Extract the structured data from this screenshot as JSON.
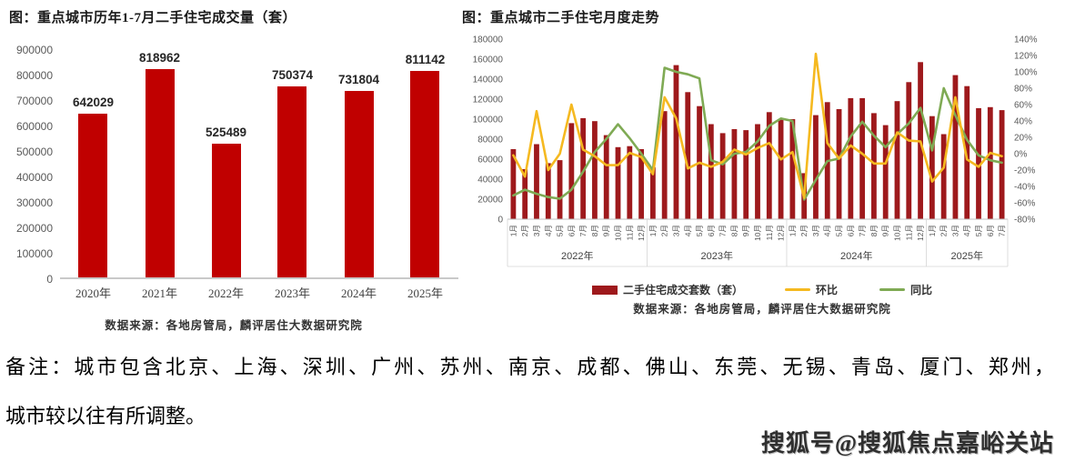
{
  "chart_data": [
    {
      "type": "bar",
      "title": "图：重点城市历年1-7月二手住宅成交量（套）",
      "categories": [
        "2020年",
        "2021年",
        "2022年",
        "2023年",
        "2024年",
        "2025年"
      ],
      "values": [
        642029,
        818962,
        525489,
        750374,
        731804,
        811142
      ],
      "value_labels": [
        "642029",
        "818962",
        "525489",
        "750374",
        "731804",
        "811142"
      ],
      "ylim": [
        0,
        900000
      ],
      "yticks": [
        0,
        100000,
        200000,
        300000,
        400000,
        500000,
        600000,
        700000,
        800000,
        900000
      ],
      "bar_color": "#c00000",
      "grid": false,
      "source": "数据来源：各地房管局，麟评居住大数据研究院"
    },
    {
      "type": "combo",
      "title": "图：重点城市二手住宅月度走势",
      "categories": [
        "1月",
        "2月",
        "3月",
        "4月",
        "5月",
        "6月",
        "7月",
        "8月",
        "9月",
        "10月",
        "11月",
        "12月",
        "1月",
        "2月",
        "3月",
        "4月",
        "5月",
        "6月",
        "7月",
        "8月",
        "9月",
        "10月",
        "11月",
        "12月",
        "1月",
        "2月",
        "3月",
        "4月",
        "5月",
        "6月",
        "7月",
        "8月",
        "9月",
        "10月",
        "11月",
        "12月",
        "1月",
        "2月",
        "3月",
        "4月",
        "5月",
        "6月",
        "7月"
      ],
      "year_groups": [
        {
          "label": "2022年",
          "months": 12
        },
        {
          "label": "2023年",
          "months": 12
        },
        {
          "label": "2024年",
          "months": 12
        },
        {
          "label": "2025年",
          "months": 7
        }
      ],
      "left_ylim": [
        0,
        180000
      ],
      "left_yticks": [
        0,
        20000,
        40000,
        60000,
        80000,
        100000,
        120000,
        140000,
        160000,
        180000
      ],
      "right_ylim": [
        -80,
        140
      ],
      "right_yticks": [
        140,
        120,
        100,
        80,
        60,
        40,
        20,
        0,
        -20,
        -40,
        -60,
        -80
      ],
      "grid": false,
      "legend_position": "bottom",
      "series": [
        {
          "name": "二手住宅成交套数（套）",
          "type": "bar",
          "axis": "left",
          "color": "#9e191c",
          "values": [
            70000,
            50000,
            75000,
            56000,
            59000,
            96000,
            101000,
            98000,
            84000,
            72000,
            73000,
            70000,
            52000,
            108000,
            154000,
            127000,
            113000,
            95000,
            86000,
            90000,
            89000,
            95000,
            107000,
            100000,
            100000,
            46000,
            104000,
            117000,
            110000,
            121000,
            121000,
            106000,
            94000,
            118000,
            137000,
            157000,
            103000,
            85000,
            144000,
            133000,
            111000,
            112000,
            109000
          ]
        },
        {
          "name": "环比",
          "type": "line",
          "axis": "right",
          "color": "#f5b920",
          "values": [
            -2,
            -28,
            52,
            -20,
            0,
            60,
            5,
            -3,
            -14,
            -14,
            1,
            -4,
            -25,
            69,
            43,
            -18,
            -11,
            -16,
            -10,
            5,
            -1,
            7,
            13,
            -7,
            2,
            -54,
            122,
            13,
            -6,
            10,
            0,
            -12,
            -12,
            26,
            16,
            15,
            -34,
            -17,
            69,
            -7,
            -16,
            1,
            -3
          ]
        },
        {
          "name": "同比",
          "type": "line",
          "axis": "right",
          "color": "#7faa54",
          "values": [
            -51,
            -44,
            -49,
            -53,
            -55,
            -44,
            -22,
            2,
            18,
            36,
            19,
            0,
            -20,
            105,
            100,
            97,
            92,
            -8,
            -13,
            0,
            2,
            15,
            34,
            43,
            40,
            -56,
            -32,
            -9,
            -6,
            21,
            39,
            22,
            8,
            24,
            37,
            56,
            4,
            80,
            47,
            17,
            -2,
            -8,
            -11
          ]
        }
      ],
      "source": "数据来源：各地房管局，麟评居住大数据研究院"
    }
  ],
  "note": {
    "line1": "备注：城市包含北京、上海、深圳、广州、苏州、南京、成都、佛山、东莞、无锡、青岛、厦门、郑州，",
    "line2": "城市较以往有所调整。"
  },
  "watermark": "搜狐号@搜狐焦点嘉峪关站",
  "colors": {
    "left_bar": "#c00000",
    "right_bar": "#9e191c",
    "mom_line": "#f5b920",
    "yoy_line": "#7faa54",
    "axis_text": "#595959"
  }
}
